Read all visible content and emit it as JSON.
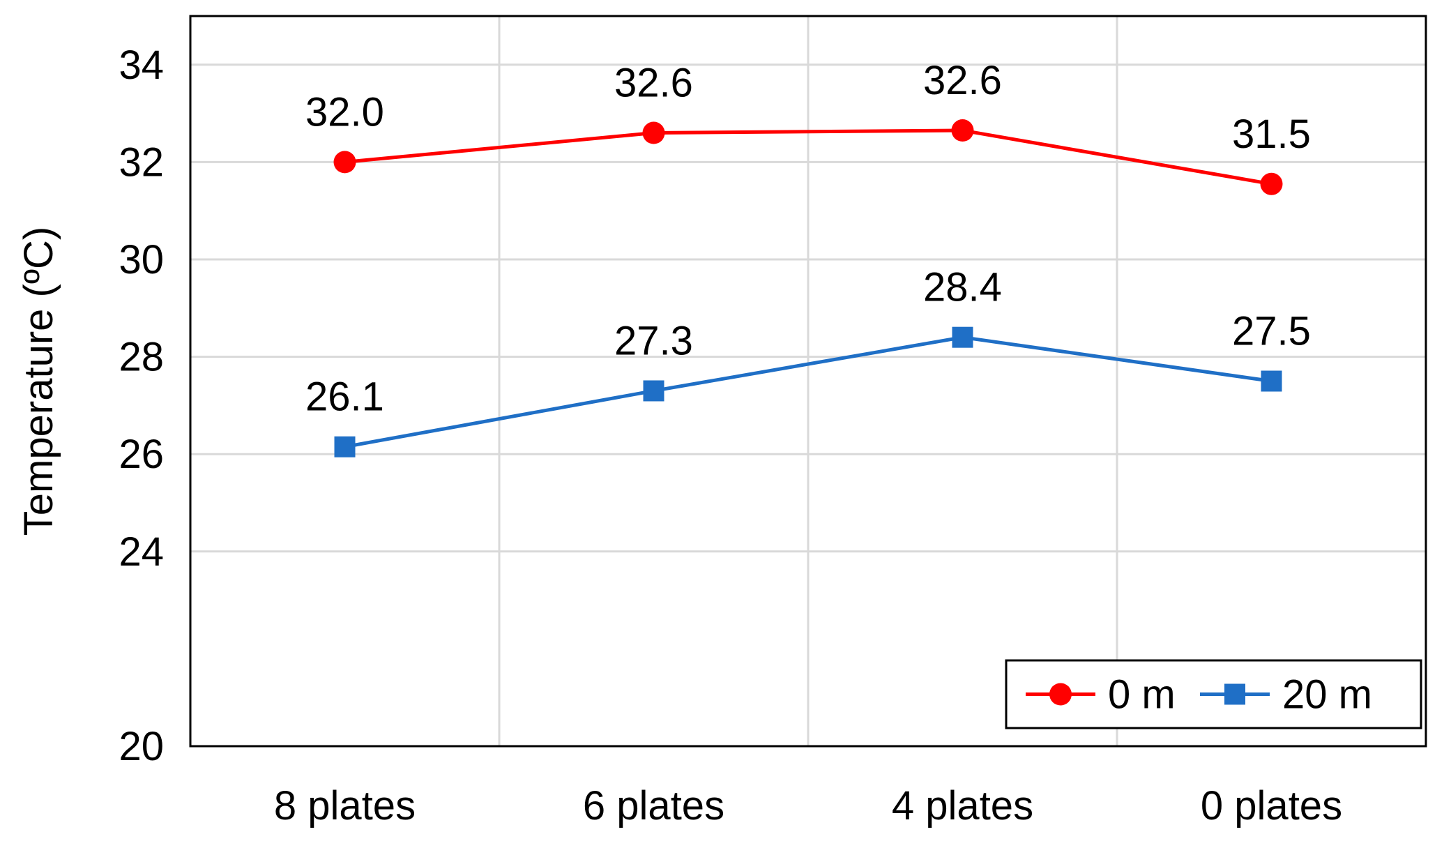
{
  "chart_data": {
    "type": "line",
    "categories": [
      "8 plates",
      "6 plates",
      "4 plates",
      "0 plates"
    ],
    "ylabel": "Temperature (ºC)",
    "xlabel": "",
    "ylim": [
      20,
      35
    ],
    "yticks": [
      20,
      24,
      26,
      28,
      30,
      32,
      34
    ],
    "grid": true,
    "legend_position": "bottom-right",
    "series": [
      {
        "name": "0 m",
        "marker": "circle",
        "color": "#ff0000",
        "values": [
          32.0,
          32.6,
          32.65,
          31.55
        ],
        "labels": [
          "32.0",
          "32.6",
          "32.6",
          "31.5"
        ]
      },
      {
        "name": "20 m",
        "marker": "square",
        "color": "#1f6fc6",
        "values": [
          26.15,
          27.3,
          28.4,
          27.5
        ],
        "labels": [
          "26.1",
          "27.3",
          "28.4",
          "27.5"
        ]
      }
    ]
  }
}
